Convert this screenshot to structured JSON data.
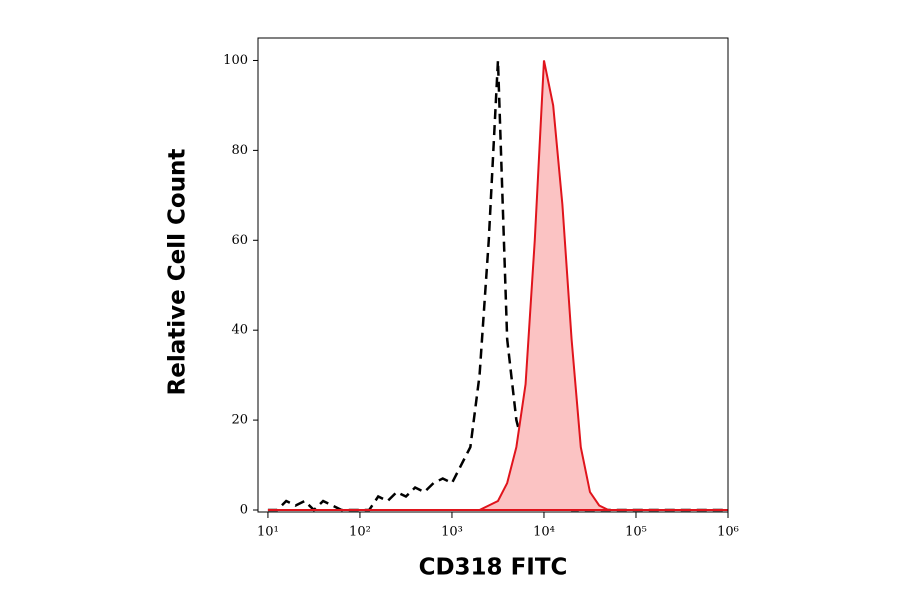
{
  "chart_data": {
    "type": "line",
    "x_label": "CD318 FITC",
    "y_label": "Relative Cell Count",
    "xscale": "log",
    "xlim": [
      7.8,
      1000000
    ],
    "xticks": [
      {
        "value": 10,
        "label": "10¹"
      },
      {
        "value": 100,
        "label": "10²"
      },
      {
        "value": 1000,
        "label": "10³"
      },
      {
        "value": 10000,
        "label": "10⁴"
      },
      {
        "value": 100000,
        "label": "10⁵"
      },
      {
        "value": 1000000,
        "label": "10⁶"
      }
    ],
    "ylim": [
      0,
      105
    ],
    "yticks": [
      0,
      20,
      40,
      60,
      80,
      100
    ],
    "x": [
      10,
      12.6,
      15.8,
      20,
      25.1,
      31.6,
      39.8,
      50.1,
      63.1,
      79.4,
      100,
      126,
      158,
      200,
      251,
      316,
      398,
      501,
      631,
      794,
      1000,
      1259,
      1585,
      1995,
      2512,
      3162,
      3981,
      5012,
      6310,
      7943,
      10000,
      12589,
      15849,
      19953,
      25119,
      31623,
      39811,
      50119,
      63096,
      79433,
      100000,
      125893,
      158489,
      199526,
      251189,
      316228,
      398107,
      501187,
      630957,
      794328,
      1000000
    ],
    "series": [
      {
        "color": "#000000",
        "style": "dashed",
        "values": [
          0,
          0,
          2,
          1,
          2,
          0,
          2,
          1,
          0,
          0,
          0,
          0,
          3,
          2,
          4,
          3,
          5,
          4,
          6,
          7,
          6,
          10,
          14,
          30,
          60,
          100,
          38,
          20,
          12,
          6,
          4,
          3,
          1,
          0,
          0,
          0,
          0,
          0,
          0,
          0,
          0,
          0,
          0,
          0,
          0,
          0,
          0,
          0,
          0,
          0,
          0
        ]
      },
      {
        "color": "#e0141c",
        "style": "solid",
        "fill": "#fbc3c3",
        "values": [
          0,
          0,
          0,
          0,
          0,
          0,
          0,
          0,
          0,
          0,
          0,
          0,
          0,
          0,
          0,
          0,
          0,
          0,
          0,
          0,
          0,
          0,
          0,
          0,
          1,
          2,
          6,
          14,
          28,
          60,
          100,
          90,
          68,
          38,
          14,
          4,
          1,
          0,
          0,
          0,
          0,
          0,
          0,
          0,
          0,
          0,
          0,
          0,
          0,
          0,
          0
        ]
      }
    ]
  }
}
